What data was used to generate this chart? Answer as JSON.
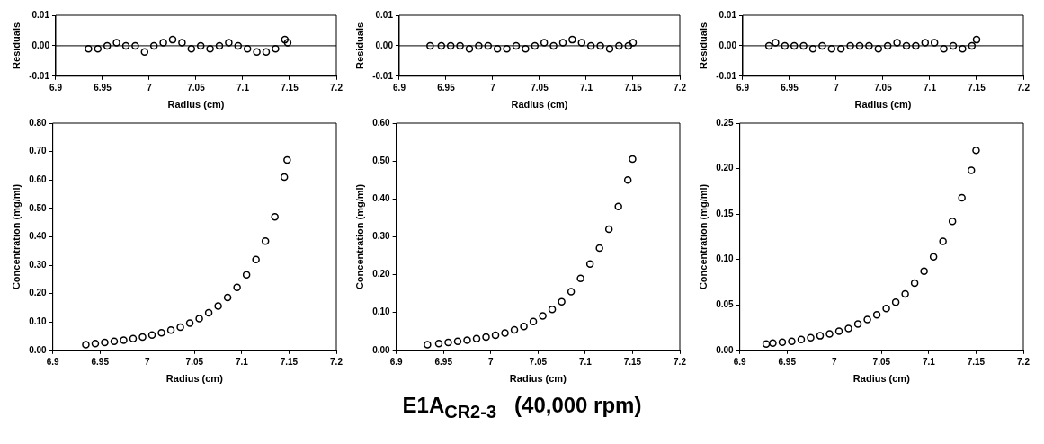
{
  "chart_data": [
    {
      "type": "scatter",
      "xlabel": "Radius (cm)",
      "ylabel": "Residuals",
      "color": "#000000",
      "marker": "circle",
      "xlim": [
        6.9,
        7.2
      ],
      "xticks": [
        6.9,
        6.95,
        7,
        7.05,
        7.1,
        7.15,
        7.2
      ],
      "ylim": [
        -0.01,
        0.01
      ],
      "yticks": [
        {
          "value": -0.01,
          "label": "-0.01"
        },
        {
          "value": 0,
          "label": "0.00"
        },
        {
          "value": 0.01,
          "label": "0.01"
        }
      ],
      "ref_lines": [
        {
          "axis": "y",
          "value": 0,
          "label": null
        }
      ],
      "x": [
        6.935,
        6.945,
        6.955,
        6.965,
        6.975,
        6.985,
        6.995,
        7.005,
        7.015,
        7.025,
        7.035,
        7.045,
        7.055,
        7.065,
        7.075,
        7.085,
        7.095,
        7.105,
        7.115,
        7.125,
        7.135,
        7.145,
        7.148
      ],
      "values": [
        -0.001,
        -0.001,
        0,
        0.001,
        0,
        0,
        -0.002,
        0,
        0.001,
        0.002,
        0.001,
        -0.001,
        0,
        -0.001,
        0,
        0.001,
        0,
        -0.001,
        -0.002,
        -0.002,
        -0.001,
        0.002,
        0.001
      ]
    },
    {
      "type": "scatter",
      "xlabel": "Radius (cm)",
      "ylabel": "Residuals",
      "color": "#000000",
      "marker": "circle",
      "xlim": [
        6.9,
        7.2
      ],
      "xticks": [
        6.9,
        6.95,
        7,
        7.05,
        7.1,
        7.15,
        7.2
      ],
      "ylim": [
        -0.01,
        0.01
      ],
      "yticks": [
        {
          "value": -0.01,
          "label": "-0.01"
        },
        {
          "value": 0,
          "label": "0.00"
        },
        {
          "value": 0.01,
          "label": "0.01"
        }
      ],
      "ref_lines": [
        {
          "axis": "y",
          "value": 0,
          "label": null
        }
      ],
      "x": [
        6.933,
        6.945,
        6.955,
        6.965,
        6.975,
        6.985,
        6.995,
        7.005,
        7.015,
        7.025,
        7.035,
        7.045,
        7.055,
        7.065,
        7.075,
        7.085,
        7.095,
        7.105,
        7.115,
        7.125,
        7.135,
        7.145,
        7.15
      ],
      "values": [
        0,
        0,
        0,
        0,
        -0.001,
        0,
        0,
        -0.001,
        -0.001,
        0,
        -0.001,
        0,
        0.001,
        0,
        0.001,
        0.002,
        0.001,
        0,
        0,
        -0.001,
        0,
        0,
        0.001
      ]
    },
    {
      "type": "scatter",
      "xlabel": "Radius (cm)",
      "ylabel": "Residuals",
      "color": "#000000",
      "marker": "circle",
      "xlim": [
        6.9,
        7.2
      ],
      "xticks": [
        6.9,
        6.95,
        7,
        7.05,
        7.1,
        7.15,
        7.2
      ],
      "ylim": [
        -0.01,
        0.01
      ],
      "yticks": [
        {
          "value": -0.01,
          "label": "-0.01"
        },
        {
          "value": 0,
          "label": "0.00"
        },
        {
          "value": 0.01,
          "label": "0.01"
        }
      ],
      "ref_lines": [
        {
          "axis": "y",
          "value": 0,
          "label": null
        }
      ],
      "x": [
        6.928,
        6.935,
        6.945,
        6.955,
        6.965,
        6.975,
        6.985,
        6.995,
        7.005,
        7.015,
        7.025,
        7.035,
        7.045,
        7.055,
        7.065,
        7.075,
        7.085,
        7.095,
        7.105,
        7.115,
        7.125,
        7.135,
        7.145,
        7.15
      ],
      "values": [
        0,
        0.001,
        0,
        0,
        0,
        -0.001,
        0,
        -0.001,
        -0.001,
        0,
        0,
        0,
        -0.001,
        0,
        0.001,
        0,
        0,
        0.001,
        0.001,
        -0.001,
        0,
        -0.001,
        0,
        0.002
      ]
    },
    {
      "type": "scatter",
      "xlabel": "Radius (cm)",
      "ylabel": "Concentration (mg/ml)",
      "color": "#000000",
      "marker": "circle",
      "xlim": [
        6.9,
        7.2
      ],
      "xticks": [
        6.9,
        6.95,
        7,
        7.05,
        7.1,
        7.15,
        7.2
      ],
      "ylim": [
        0,
        0.8
      ],
      "yticks": [
        {
          "value": 0,
          "label": "0.00"
        },
        {
          "value": 0.1,
          "label": "0.10"
        },
        {
          "value": 0.2,
          "label": "0.20"
        },
        {
          "value": 0.3,
          "label": "0.30"
        },
        {
          "value": 0.4,
          "label": "0.40"
        },
        {
          "value": 0.5,
          "label": "0.50"
        },
        {
          "value": 0.6,
          "label": "0.60"
        },
        {
          "value": 0.7,
          "label": "0.70"
        },
        {
          "value": 0.8,
          "label": "0.80"
        }
      ],
      "x": [
        6.935,
        6.945,
        6.955,
        6.965,
        6.975,
        6.985,
        6.995,
        7.005,
        7.015,
        7.025,
        7.035,
        7.045,
        7.055,
        7.065,
        7.075,
        7.085,
        7.095,
        7.105,
        7.115,
        7.125,
        7.135,
        7.145,
        7.148
      ],
      "values": [
        0.02,
        0.024,
        0.028,
        0.032,
        0.036,
        0.041,
        0.047,
        0.054,
        0.062,
        0.071,
        0.082,
        0.096,
        0.112,
        0.132,
        0.156,
        0.186,
        0.222,
        0.266,
        0.32,
        0.385,
        0.47,
        0.61,
        0.67
      ]
    },
    {
      "type": "scatter",
      "xlabel": "Radius (cm)",
      "ylabel": "Concentration (mg/ml)",
      "color": "#000000",
      "marker": "circle",
      "xlim": [
        6.9,
        7.2
      ],
      "xticks": [
        6.9,
        6.95,
        7,
        7.05,
        7.1,
        7.15,
        7.2
      ],
      "ylim": [
        0,
        0.6
      ],
      "yticks": [
        {
          "value": 0,
          "label": "0.00"
        },
        {
          "value": 0.1,
          "label": "0.10"
        },
        {
          "value": 0.2,
          "label": "0.20"
        },
        {
          "value": 0.3,
          "label": "0.30"
        },
        {
          "value": 0.4,
          "label": "0.40"
        },
        {
          "value": 0.5,
          "label": "0.50"
        },
        {
          "value": 0.6,
          "label": "0.60"
        }
      ],
      "x": [
        6.933,
        6.945,
        6.955,
        6.965,
        6.975,
        6.985,
        6.995,
        7.005,
        7.015,
        7.025,
        7.035,
        7.045,
        7.055,
        7.065,
        7.075,
        7.085,
        7.095,
        7.105,
        7.115,
        7.125,
        7.135,
        7.145,
        7.15
      ],
      "values": [
        0.015,
        0.018,
        0.021,
        0.024,
        0.027,
        0.031,
        0.035,
        0.04,
        0.046,
        0.054,
        0.063,
        0.076,
        0.091,
        0.108,
        0.128,
        0.155,
        0.19,
        0.228,
        0.27,
        0.32,
        0.38,
        0.45,
        0.505
      ]
    },
    {
      "type": "scatter",
      "xlabel": "Radius (cm)",
      "ylabel": "Concentration (mg/ml)",
      "color": "#000000",
      "marker": "circle",
      "xlim": [
        6.9,
        7.2
      ],
      "xticks": [
        6.9,
        6.95,
        7,
        7.05,
        7.1,
        7.15,
        7.2
      ],
      "ylim": [
        0,
        0.25
      ],
      "yticks": [
        {
          "value": 0,
          "label": "0.00"
        },
        {
          "value": 0.05,
          "label": "0.05"
        },
        {
          "value": 0.1,
          "label": "0.10"
        },
        {
          "value": 0.15,
          "label": "0.15"
        },
        {
          "value": 0.2,
          "label": "0.20"
        },
        {
          "value": 0.25,
          "label": "0.25"
        }
      ],
      "x": [
        6.928,
        6.935,
        6.945,
        6.955,
        6.965,
        6.975,
        6.985,
        6.995,
        7.005,
        7.015,
        7.025,
        7.035,
        7.045,
        7.055,
        7.065,
        7.075,
        7.085,
        7.095,
        7.105,
        7.115,
        7.125,
        7.135,
        7.145,
        7.15
      ],
      "values": [
        0.007,
        0.008,
        0.009,
        0.01,
        0.012,
        0.014,
        0.016,
        0.018,
        0.021,
        0.024,
        0.029,
        0.034,
        0.039,
        0.046,
        0.053,
        0.062,
        0.074,
        0.087,
        0.103,
        0.12,
        0.142,
        0.168,
        0.198,
        0.22
      ]
    },
    {
      "type": "other",
      "title": "E1A$_{CR2-3}$   (40,000 rpm)"
    }
  ]
}
